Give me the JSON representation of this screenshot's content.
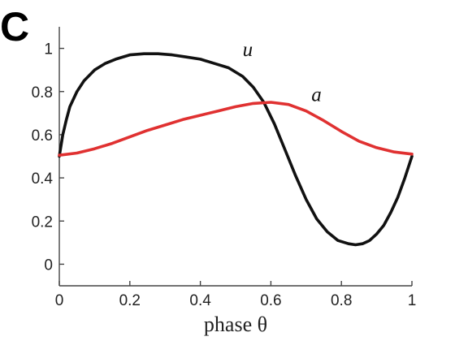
{
  "panel_label": "C",
  "chart_data": {
    "type": "line",
    "title": "",
    "xlabel": "phase θ",
    "ylabel": "",
    "xlim": [
      0,
      1
    ],
    "ylim": [
      -0.1,
      1.1
    ],
    "xticks": [
      0,
      0.2,
      0.4,
      0.6,
      0.8,
      1
    ],
    "xtick_labels": [
      "0",
      "0.2",
      "0.4",
      "0.6",
      "0.8",
      "1"
    ],
    "yticks": [
      0,
      0.2,
      0.4,
      0.6,
      0.8,
      1
    ],
    "ytick_labels": [
      "0",
      "0.2",
      "0.4",
      "0.6",
      "0.8",
      "1"
    ],
    "grid": false,
    "series": [
      {
        "name": "u",
        "color": "#111111",
        "label_at": [
          0.52,
          0.965
        ],
        "x": [
          0,
          0.01,
          0.02,
          0.03,
          0.05,
          0.07,
          0.1,
          0.13,
          0.16,
          0.2,
          0.24,
          0.28,
          0.32,
          0.36,
          0.4,
          0.44,
          0.48,
          0.52,
          0.55,
          0.58,
          0.61,
          0.64,
          0.67,
          0.7,
          0.73,
          0.76,
          0.79,
          0.82,
          0.84,
          0.86,
          0.88,
          0.9,
          0.92,
          0.94,
          0.96,
          0.98,
          1
        ],
        "y": [
          0.5,
          0.6,
          0.67,
          0.73,
          0.8,
          0.85,
          0.9,
          0.93,
          0.95,
          0.97,
          0.975,
          0.975,
          0.97,
          0.96,
          0.95,
          0.93,
          0.91,
          0.87,
          0.82,
          0.75,
          0.65,
          0.53,
          0.41,
          0.3,
          0.21,
          0.15,
          0.11,
          0.095,
          0.09,
          0.095,
          0.11,
          0.14,
          0.18,
          0.24,
          0.31,
          0.4,
          0.5
        ]
      },
      {
        "name": "a",
        "color": "#e03131",
        "label_at": [
          0.715,
          0.755
        ],
        "x": [
          0,
          0.05,
          0.1,
          0.15,
          0.2,
          0.25,
          0.3,
          0.35,
          0.4,
          0.45,
          0.5,
          0.55,
          0.6,
          0.65,
          0.7,
          0.75,
          0.8,
          0.85,
          0.9,
          0.95,
          1
        ],
        "y": [
          0.505,
          0.515,
          0.535,
          0.56,
          0.59,
          0.62,
          0.645,
          0.67,
          0.69,
          0.71,
          0.73,
          0.745,
          0.75,
          0.74,
          0.71,
          0.665,
          0.615,
          0.57,
          0.54,
          0.52,
          0.51
        ]
      }
    ]
  }
}
